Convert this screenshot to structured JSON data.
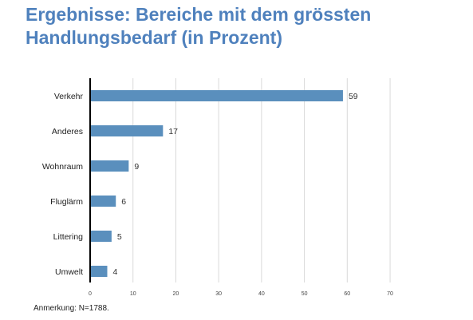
{
  "title": {
    "line1": "Ergebnisse: Bereiche mit dem grössten",
    "line2": "Handlungsbedarf (in Prozent)"
  },
  "note": "Anmerkung: N=1788.",
  "colors": {
    "title": "#4f81bd",
    "bar": "#5a8fbd",
    "grid": "#d9d9d9",
    "axis": "#000000"
  },
  "chart_data": {
    "type": "bar",
    "orientation": "horizontal",
    "categories": [
      "Verkehr",
      "Anderes",
      "Wohnraum",
      "Fluglärm",
      "Littering",
      "Umwelt"
    ],
    "values": [
      59,
      17,
      9,
      6,
      5,
      4
    ],
    "xlim": [
      0,
      70
    ],
    "xticks": [
      0,
      10,
      20,
      30,
      40,
      50,
      60,
      70
    ],
    "grid": true,
    "legend": "none"
  }
}
